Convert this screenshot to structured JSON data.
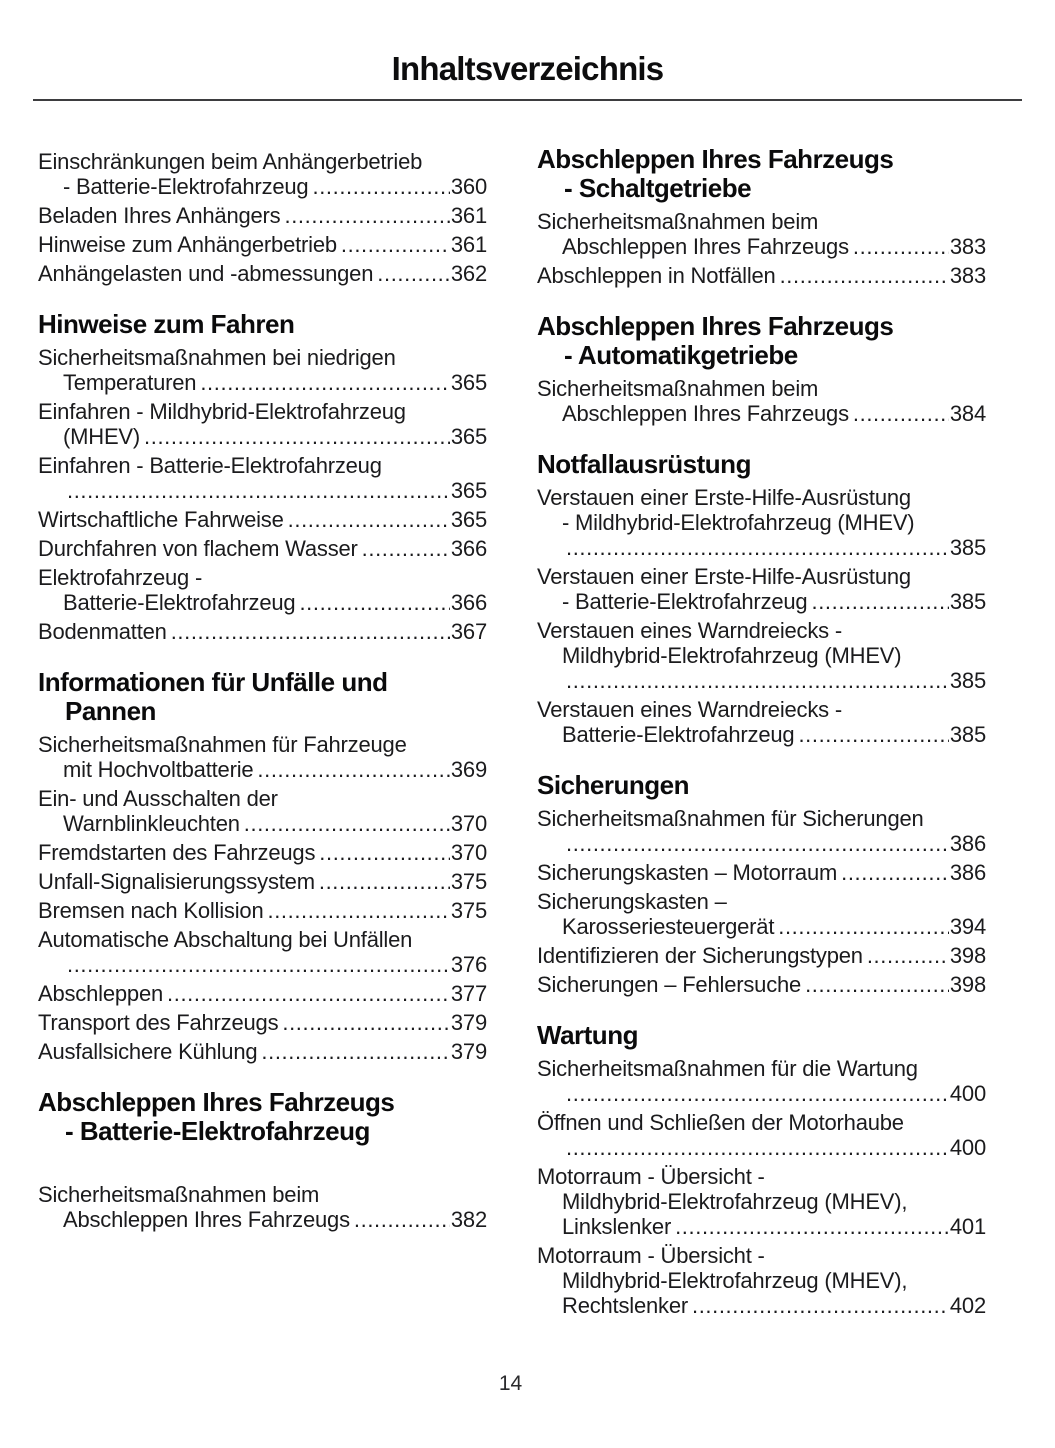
{
  "title": "Inhaltsverzeichnis",
  "page_number": "14",
  "columns": [
    {
      "sections": [
        {
          "heading_lines": [],
          "entries": [
            {
              "lines": [
                "Einschränkungen beim Anhängerbetrieb",
                "- Batterie-Elektrofahrzeug"
              ],
              "page": "360"
            },
            {
              "lines": [
                "Beladen Ihres Anhängers"
              ],
              "page": "361"
            },
            {
              "lines": [
                "Hinweise zum Anhängerbetrieb"
              ],
              "page": "361"
            },
            {
              "lines": [
                "Anhängelasten und -abmessungen"
              ],
              "page": "362"
            }
          ]
        },
        {
          "heading_lines": [
            "Hinweise zum Fahren"
          ],
          "entries": [
            {
              "lines": [
                "Sicherheitsmaßnahmen bei niedrigen",
                "Temperaturen"
              ],
              "page": "365"
            },
            {
              "lines": [
                "Einfahren - Mildhybrid-Elektrofahrzeug",
                "(MHEV)"
              ],
              "page": "365"
            },
            {
              "lines": [
                "Einfahren - Batterie-Elektrofahrzeug",
                ""
              ],
              "page": "365"
            },
            {
              "lines": [
                "Wirtschaftliche Fahrweise"
              ],
              "page": "365"
            },
            {
              "lines": [
                "Durchfahren von flachem Wasser"
              ],
              "page": "366"
            },
            {
              "lines": [
                "Elektrofahrzeug -",
                "Batterie-Elektrofahrzeug"
              ],
              "page": "366"
            },
            {
              "lines": [
                "Bodenmatten"
              ],
              "page": "367"
            }
          ]
        },
        {
          "heading_lines": [
            "Informationen für Unfälle und",
            "Pannen"
          ],
          "entries": [
            {
              "lines": [
                "Sicherheitsmaßnahmen für Fahrzeuge",
                "mit Hochvoltbatterie"
              ],
              "page": "369"
            },
            {
              "lines": [
                "Ein- und Ausschalten der",
                "Warnblinkleuchten"
              ],
              "page": "370"
            },
            {
              "lines": [
                "Fremdstarten des Fahrzeugs"
              ],
              "page": "370"
            },
            {
              "lines": [
                "Unfall-Signalisierungssystem"
              ],
              "page": "375"
            },
            {
              "lines": [
                "Bremsen nach Kollision"
              ],
              "page": "375"
            },
            {
              "lines": [
                "Automatische Abschaltung bei Unfällen",
                ""
              ],
              "page": "376"
            },
            {
              "lines": [
                "Abschleppen"
              ],
              "page": "377"
            },
            {
              "lines": [
                "Transport des Fahrzeugs"
              ],
              "page": "379"
            },
            {
              "lines": [
                "Ausfallsichere Kühlung"
              ],
              "page": "379"
            }
          ]
        },
        {
          "heading_lines": [
            "Abschleppen Ihres Fahrzeugs",
            "- Batterie-Elektrofahrzeug"
          ],
          "extra_gap": true,
          "entries": [
            {
              "lines": [
                "Sicherheitsmaßnahmen beim",
                "Abschleppen Ihres Fahrzeugs"
              ],
              "page": "382"
            }
          ]
        }
      ]
    },
    {
      "sections": [
        {
          "heading_lines": [
            "Abschleppen Ihres Fahrzeugs",
            "- Schaltgetriebe"
          ],
          "entries": [
            {
              "lines": [
                "Sicherheitsmaßnahmen beim",
                "Abschleppen Ihres Fahrzeugs"
              ],
              "page": "383"
            },
            {
              "lines": [
                "Abschleppen in Notfällen"
              ],
              "page": "383"
            }
          ]
        },
        {
          "heading_lines": [
            "Abschleppen Ihres Fahrzeugs",
            "- Automatikgetriebe"
          ],
          "entries": [
            {
              "lines": [
                "Sicherheitsmaßnahmen beim",
                "Abschleppen Ihres Fahrzeugs"
              ],
              "page": "384"
            }
          ]
        },
        {
          "heading_lines": [
            "Notfallausrüstung"
          ],
          "entries": [
            {
              "lines": [
                "Verstauen einer Erste-Hilfe-Ausrüstung",
                "- Mildhybrid-Elektrofahrzeug (MHEV)",
                ""
              ],
              "page": "385"
            },
            {
              "lines": [
                "Verstauen einer Erste-Hilfe-Ausrüstung",
                "- Batterie-Elektrofahrzeug"
              ],
              "page": "385"
            },
            {
              "lines": [
                "Verstauen eines Warndreiecks -",
                "Mildhybrid-Elektrofahrzeug (MHEV)",
                ""
              ],
              "page": "385"
            },
            {
              "lines": [
                "Verstauen eines Warndreiecks -",
                "Batterie-Elektrofahrzeug"
              ],
              "page": "385"
            }
          ]
        },
        {
          "heading_lines": [
            "Sicherungen"
          ],
          "entries": [
            {
              "lines": [
                "Sicherheitsmaßnahmen für Sicherungen",
                ""
              ],
              "page": "386"
            },
            {
              "lines": [
                "Sicherungskasten – Motorraum"
              ],
              "page": "386"
            },
            {
              "lines": [
                "Sicherungskasten –",
                "Karosseriesteuergerät"
              ],
              "page": "394"
            },
            {
              "lines": [
                "Identifizieren der Sicherungstypen"
              ],
              "page": "398"
            },
            {
              "lines": [
                "Sicherungen – Fehlersuche"
              ],
              "page": "398"
            }
          ]
        },
        {
          "heading_lines": [
            "Wartung"
          ],
          "entries": [
            {
              "lines": [
                "Sicherheitsmaßnahmen für die Wartung",
                ""
              ],
              "page": "400"
            },
            {
              "lines": [
                "Öffnen und Schließen der Motorhaube",
                ""
              ],
              "page": "400"
            },
            {
              "lines": [
                "Motorraum - Übersicht -",
                "Mildhybrid-Elektrofahrzeug (MHEV),",
                "Linkslenker"
              ],
              "page": "401"
            },
            {
              "lines": [
                "Motorraum - Übersicht -",
                "Mildhybrid-Elektrofahrzeug (MHEV),",
                "Rechtslenker"
              ],
              "page": "402"
            }
          ]
        }
      ]
    }
  ]
}
